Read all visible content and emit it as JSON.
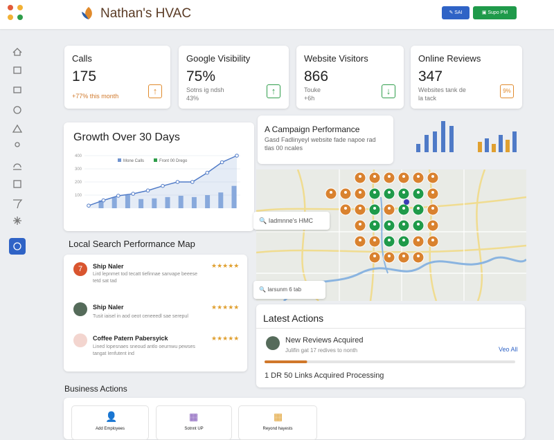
{
  "header": {
    "title": "Nathan's HVAC",
    "buttons": [
      "SAI",
      "Supo PM"
    ]
  },
  "stats": [
    {
      "label": "Calls",
      "value": "175",
      "note": "+77% this month"
    },
    {
      "label": "Google Visibility",
      "value": "75%",
      "note": "Sotns ig ndsh",
      "note2": "43%"
    },
    {
      "label": "Website Visitors",
      "value": "866",
      "note": "Touke",
      "note2": "+6h"
    },
    {
      "label": "Online Reviews",
      "value": "347",
      "note": "Websites tank de",
      "note2": "la tack",
      "badge": "9%"
    }
  ],
  "growth": {
    "title": "Growth Over 30 Days",
    "legend": [
      "Mone Calls",
      "Front 00 Drego"
    ],
    "ylim": [
      0,
      400
    ],
    "yticks": [
      100,
      200,
      300,
      400
    ],
    "line": [
      20,
      60,
      95,
      110,
      135,
      170,
      200,
      200,
      270,
      350,
      400
    ],
    "bars": [
      60,
      85,
      100,
      70,
      75,
      85,
      95,
      85,
      100,
      120,
      170
    ]
  },
  "campaign": {
    "title": "A Campaign Performance",
    "lines": [
      "Gasd Fadlinyeyl website fade napoe rad",
      "tlas 00 ncales"
    ],
    "mini_bars_1": [
      12,
      25,
      30,
      45,
      38
    ],
    "mini_bars_2": [
      15,
      20,
      12,
      25,
      18,
      30
    ]
  },
  "map": {
    "search": "Iadmnne's HMC",
    "search2": "Iarsunm 6 tab"
  },
  "local_search": {
    "title": "Local Search Performance Map",
    "reviews": [
      {
        "badge": "7",
        "name": "Ship Naler",
        "stars": "★★★★★",
        "text": [
          "Lird lepnmet tod tecatt tiefinnae sanvape beeese",
          "tetd sat tad"
        ]
      },
      {
        "name": "Ship Naler",
        "stars": "★★★★★",
        "text": [
          "Tusit iaisel in aod oeot ceneeedl sae serepul"
        ]
      },
      {
        "name": "Coffee Patern Pabersyick",
        "stars": "★★★★★",
        "text": [
          "Lined Iopesnaes sneoud antlo oeurnwu pewses",
          "tangat Ienfutent ind"
        ]
      }
    ]
  },
  "latest_actions": {
    "title": "Latest Actions",
    "item": {
      "title": "New Reviews Acquired",
      "text": "Julifin gat 17 redives to nonth",
      "link": "Veo All"
    },
    "progress": 17,
    "status": "1 DR 50 Links Acquired Processing"
  },
  "business_actions": {
    "title": "Business Actions",
    "buttons": [
      "Add Employees",
      "Sotnnt UP",
      "Reyond hayests"
    ]
  }
}
